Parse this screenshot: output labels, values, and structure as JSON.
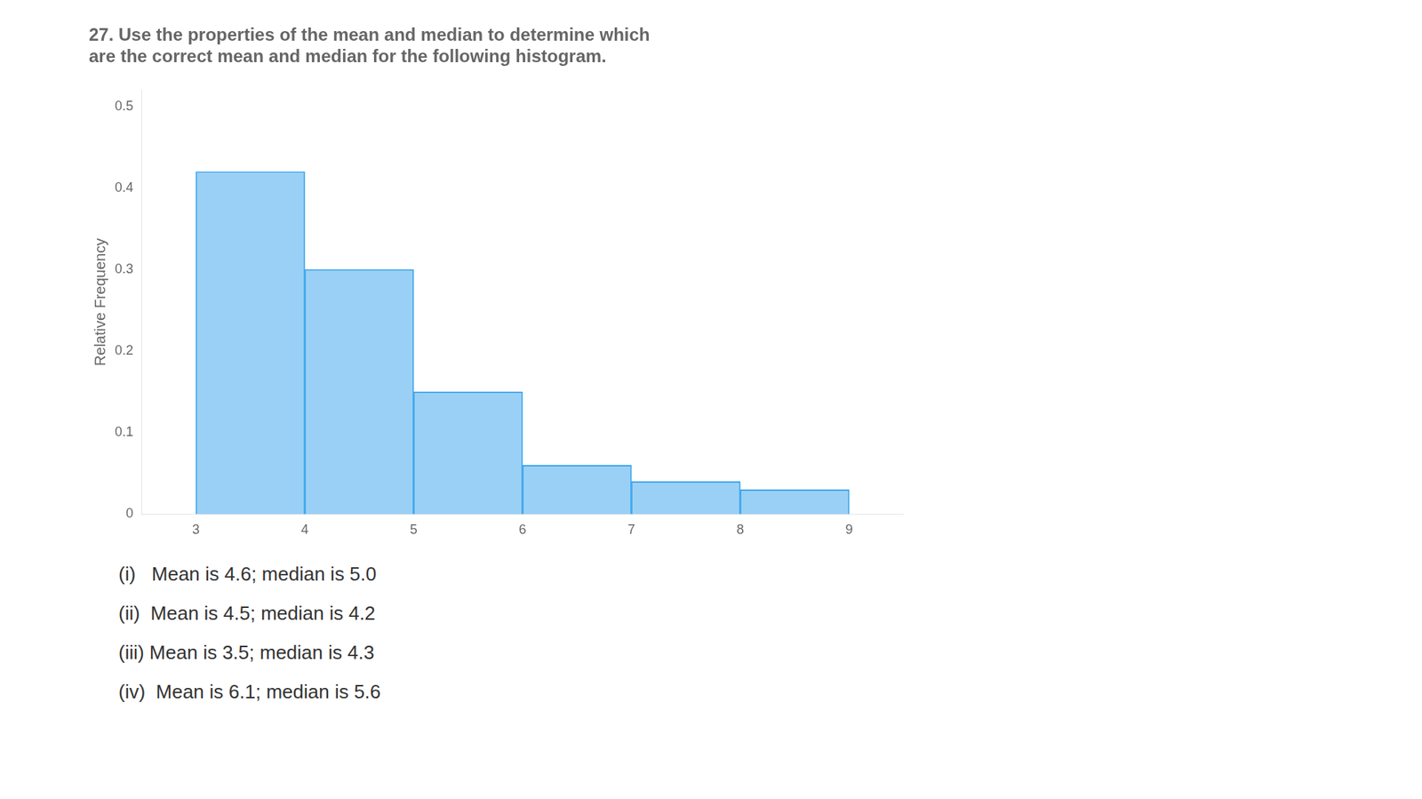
{
  "chart_data": {
    "type": "histogram",
    "title": "27. Use the properties of the mean and median to determine which\nare the correct mean and median for the following histogram.",
    "ylabel": "Relative Frequency",
    "bins": [
      3,
      4,
      5,
      6,
      7,
      8,
      9
    ],
    "values": [
      0.42,
      0.3,
      0.15,
      0.06,
      0.04,
      0.03
    ],
    "xlim": [
      2.5,
      9.5
    ],
    "xticks": [
      3,
      4,
      5,
      6,
      7,
      8,
      9
    ],
    "ylim": [
      0,
      0.52
    ],
    "yticks": [
      0,
      0.1,
      0.2,
      0.3,
      0.4,
      0.5
    ],
    "grid": false,
    "annotations": [
      "(i)   Mean is 4.6; median is 5.0",
      "(ii)  Mean is 4.5; median is 4.2",
      "(iii) Mean is 3.5; median is 4.3",
      "(iv)  Mean is 6.1; median is 5.6"
    ]
  }
}
